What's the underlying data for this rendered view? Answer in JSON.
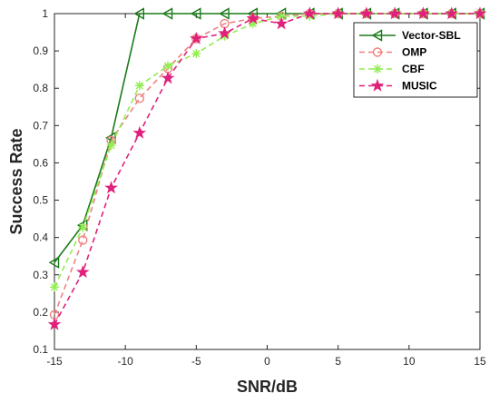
{
  "chart_data": {
    "type": "line",
    "xlabel": "SNR/dB",
    "ylabel": "Success Rate",
    "xlim": [
      -15,
      15
    ],
    "ylim": [
      0.1,
      1
    ],
    "xticks": [
      -15,
      -10,
      -5,
      0,
      5,
      10,
      15
    ],
    "yticks": [
      0.1,
      0.2,
      0.3,
      0.4,
      0.5,
      0.6,
      0.7,
      0.8,
      0.9,
      1
    ],
    "grid": false,
    "legend_position": "top-right",
    "x": [
      -15,
      -13,
      -11,
      -9,
      -7,
      -5,
      -3,
      -1,
      1,
      3,
      5,
      7,
      9,
      11,
      13,
      15
    ],
    "series": [
      {
        "name": "Vector-SBL",
        "color": "#1a7a1a",
        "line_style": "solid",
        "marker": "triangle-left",
        "values": [
          0.333,
          0.433,
          0.667,
          1.0,
          1.0,
          1.0,
          1.0,
          1.0,
          1.0,
          1.0,
          1.0,
          1.0,
          1.0,
          1.0,
          1.0,
          1.0
        ]
      },
      {
        "name": "OMP",
        "color": "#f08080",
        "line_style": "dashed",
        "marker": "circle",
        "values": [
          0.193,
          0.393,
          0.66,
          0.773,
          0.853,
          0.933,
          0.973,
          0.987,
          0.993,
          1.0,
          1.0,
          1.0,
          1.0,
          1.0,
          1.0,
          1.0
        ]
      },
      {
        "name": "CBF",
        "color": "#90ee50",
        "line_style": "dashed",
        "marker": "asterisk",
        "values": [
          0.267,
          0.427,
          0.647,
          0.807,
          0.86,
          0.893,
          0.94,
          0.973,
          0.993,
          0.993,
          1.0,
          1.0,
          1.0,
          1.0,
          1.0,
          1.0
        ]
      },
      {
        "name": "MUSIC",
        "color": "#e0207a",
        "line_style": "dashed",
        "marker": "star",
        "values": [
          0.167,
          0.307,
          0.533,
          0.68,
          0.827,
          0.933,
          0.947,
          0.987,
          0.973,
          1.0,
          1.0,
          1.0,
          1.0,
          1.0,
          1.0,
          1.0
        ]
      }
    ]
  }
}
